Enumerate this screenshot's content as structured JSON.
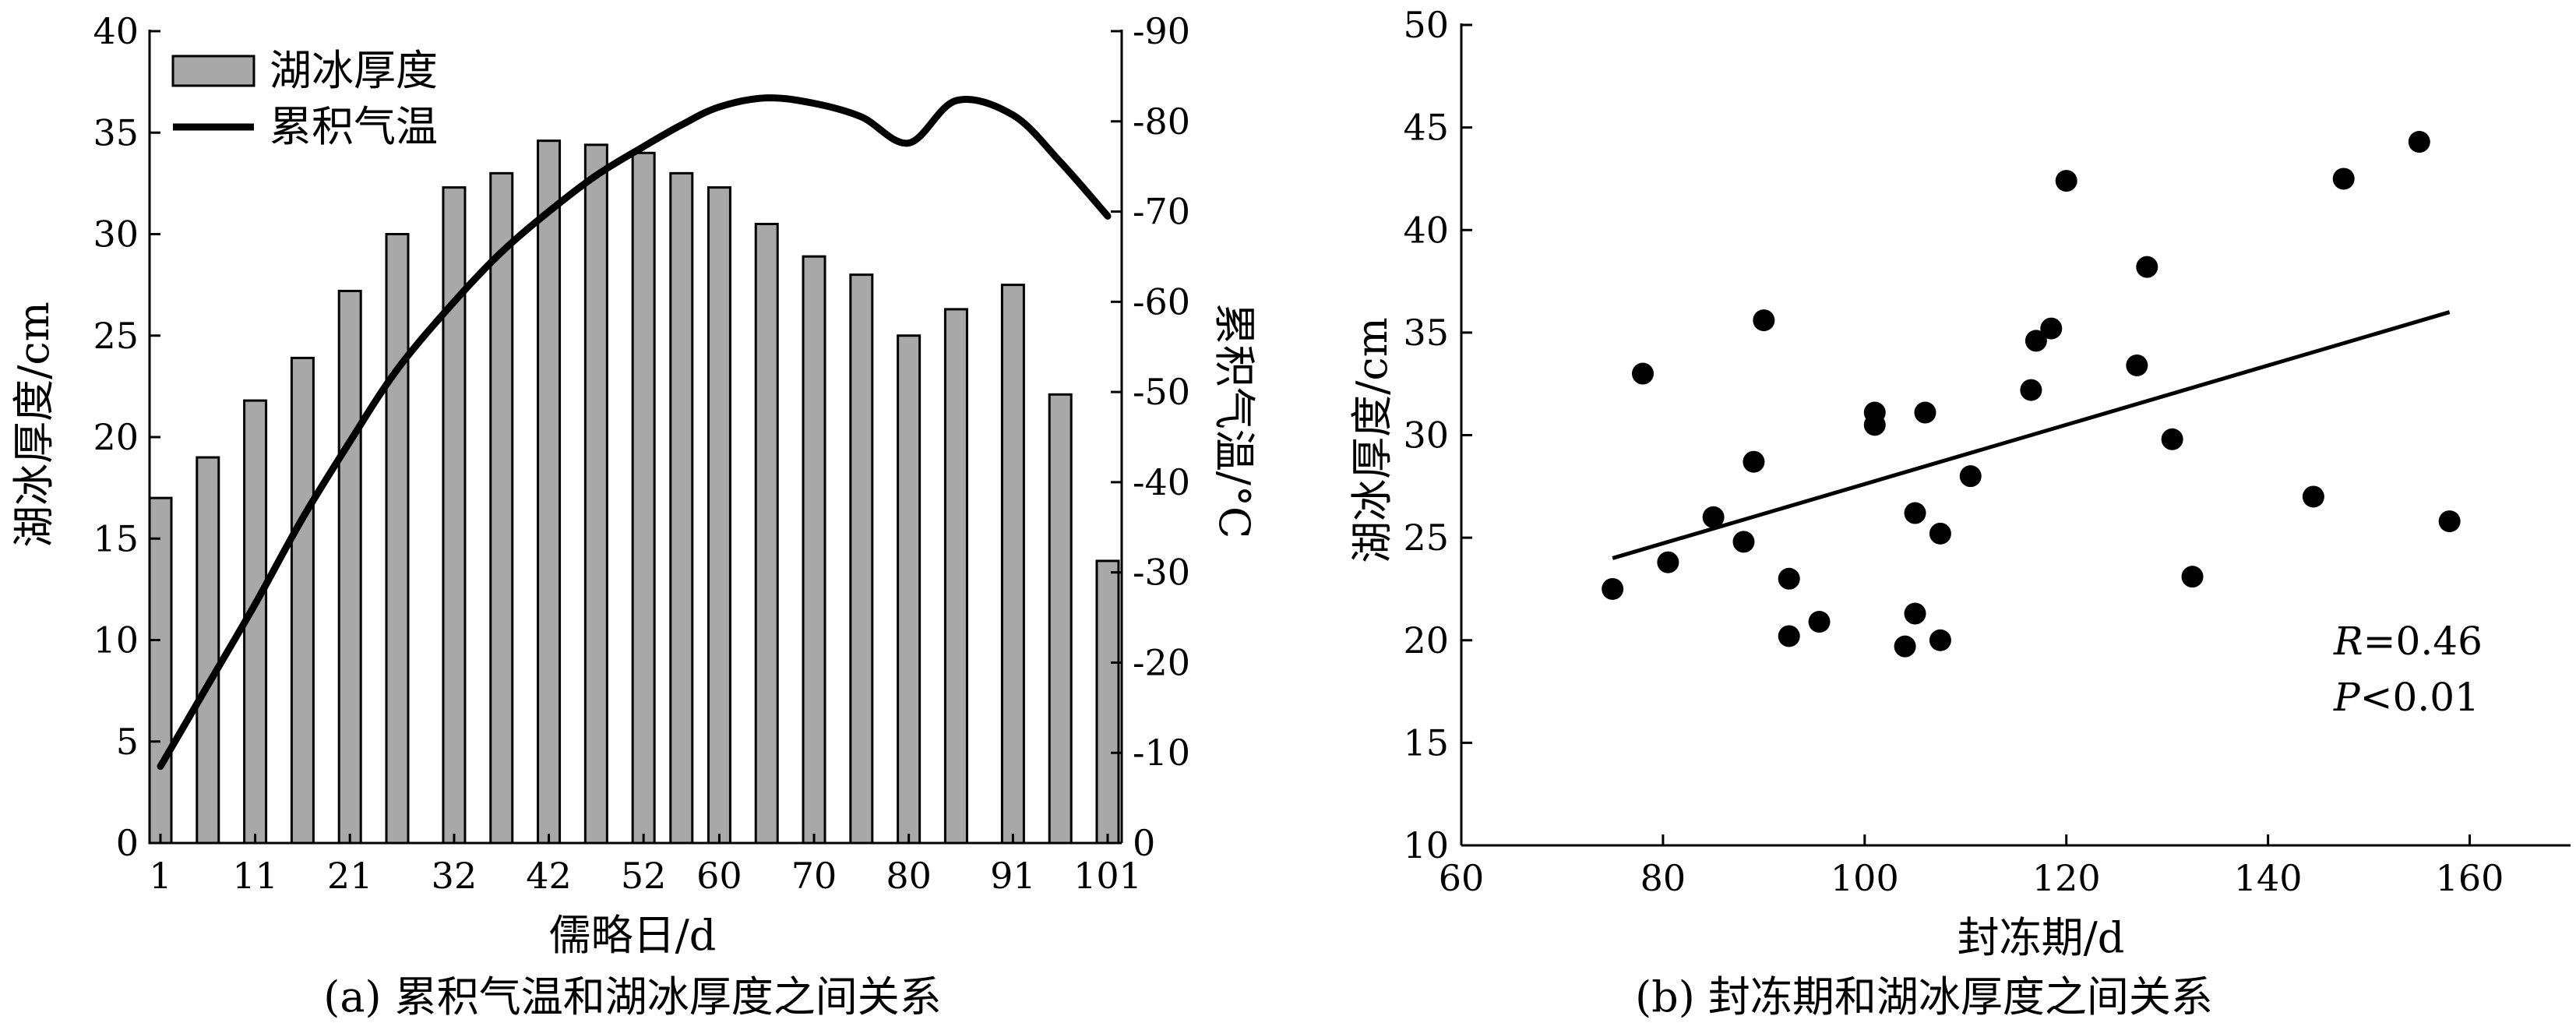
{
  "chart_data": [
    {
      "type": "bar+line",
      "caption": "(a) 累积气温和湖冰厚度之间关系",
      "xlabel": "儒略日/d",
      "ylabel": "湖冰厚度/cm",
      "ylabel_right": "累积气温/°C",
      "ylim": [
        0,
        40
      ],
      "ylim_right": [
        0,
        -90
      ],
      "y_ticks": [
        "0",
        "5",
        "10",
        "15",
        "20",
        "25",
        "30",
        "35",
        "40"
      ],
      "y_right_ticks": [
        "0",
        "-10",
        "-20",
        "-30",
        "-40",
        "-50",
        "-60",
        "-70",
        "-80",
        "-90"
      ],
      "x_tick_labels": [
        "1",
        "11",
        "21",
        "32",
        "42",
        "52",
        "60",
        "70",
        "80",
        "91",
        "101"
      ],
      "legend": {
        "position": "top-left",
        "bar_label": "湖冰厚度",
        "line_label": "累积气温"
      },
      "categories": [
        1,
        6,
        11,
        16,
        21,
        26,
        32,
        37,
        42,
        47,
        52,
        56,
        60,
        65,
        70,
        75,
        80,
        85,
        91,
        96,
        101
      ],
      "bars": [
        17,
        19,
        21.8,
        23.9,
        27.2,
        30,
        32.3,
        33,
        34.6,
        34.4,
        34,
        33,
        32.3,
        30.5,
        28.9,
        28,
        25,
        26.3,
        27.5,
        22.1,
        13.9
      ],
      "line_x": [
        1,
        6,
        11,
        16,
        21,
        26,
        32,
        37,
        42,
        47,
        52,
        56,
        60,
        65,
        70,
        75,
        80,
        85,
        91,
        96,
        101
      ],
      "line_y": [
        -8.5,
        -17.5,
        -26.5,
        -36,
        -44.5,
        -52.5,
        -60,
        -65.5,
        -70,
        -74,
        -77.2,
        -79.6,
        -81.6,
        -82.6,
        -82,
        -80.5,
        -77.6,
        -82.3,
        -80.7,
        -75.5,
        -69.5
      ]
    },
    {
      "type": "scatter",
      "caption": "(b) 封冻期和湖冰厚度之间关系",
      "xlabel": "封冻期/d",
      "ylabel": "湖冰厚度/cm",
      "xlim": [
        60,
        170
      ],
      "ylim": [
        10,
        50
      ],
      "x_ticks": [
        "60",
        "80",
        "100",
        "120",
        "140",
        "160"
      ],
      "y_ticks": [
        "10",
        "15",
        "20",
        "25",
        "30",
        "35",
        "40",
        "45",
        "50"
      ],
      "points": [
        [
          75,
          22.5
        ],
        [
          78,
          33
        ],
        [
          80.5,
          23.8
        ],
        [
          85,
          26
        ],
        [
          88,
          24.8
        ],
        [
          89,
          28.7
        ],
        [
          90,
          35.6
        ],
        [
          92.5,
          23
        ],
        [
          92.5,
          20.2
        ],
        [
          95.5,
          20.9
        ],
        [
          101,
          31.1
        ],
        [
          101,
          30.5
        ],
        [
          104,
          19.7
        ],
        [
          105,
          21.3
        ],
        [
          105,
          26.2
        ],
        [
          106,
          31.1
        ],
        [
          107.5,
          25.2
        ],
        [
          107.5,
          20
        ],
        [
          110.5,
          28
        ],
        [
          116.5,
          32.2
        ],
        [
          117,
          34.6
        ],
        [
          118.5,
          35.2
        ],
        [
          120,
          42.4
        ],
        [
          127,
          33.4
        ],
        [
          128,
          38.2
        ],
        [
          130.5,
          29.8
        ],
        [
          132.5,
          23.1
        ],
        [
          144.5,
          27
        ],
        [
          147.5,
          42.5
        ],
        [
          155,
          44.3
        ],
        [
          158,
          25.8
        ]
      ],
      "fit": {
        "x": [
          75,
          158
        ],
        "y": [
          24,
          36
        ]
      },
      "stats": {
        "r_label": "R",
        "r_value": "=0.46",
        "p_label": "P",
        "p_value": "<0.01"
      }
    }
  ]
}
